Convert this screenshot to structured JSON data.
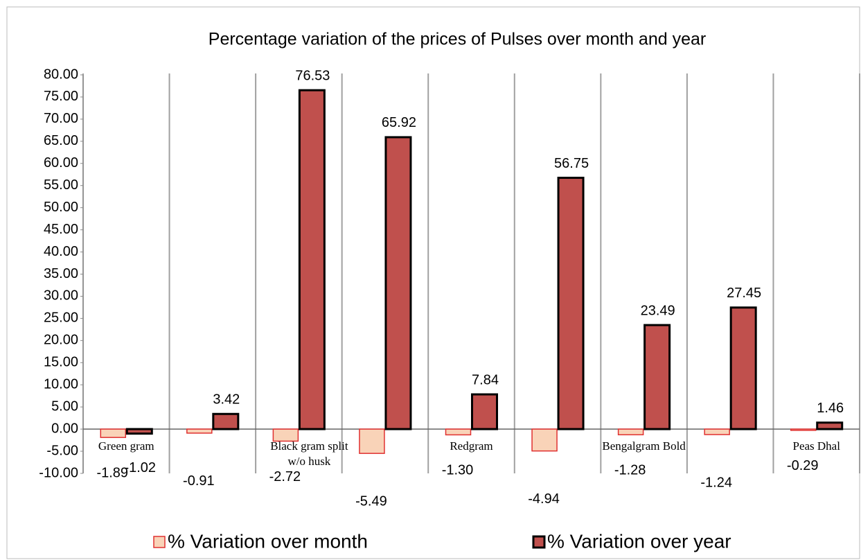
{
  "chart_data": {
    "type": "bar",
    "title": "Percentage variation of the prices of Pulses over month and year",
    "categories": [
      "Green gram",
      null,
      "Black gram split w/o husk",
      null,
      "Redgram",
      null,
      "Bengalgram Bold",
      null,
      "Peas Dhal"
    ],
    "series": [
      {
        "name": "% Variation over month",
        "color": "#f9d3b8",
        "border": "#e03030",
        "values": [
          -1.89,
          -0.91,
          -2.72,
          -5.49,
          -1.3,
          -4.94,
          -1.28,
          -1.24,
          -0.29
        ],
        "value_labels": [
          "-1.89",
          "-0.91",
          "-2.72",
          "-5.49",
          "-1.30",
          "-4.94",
          "-1.28",
          "-1.24",
          "-0.29"
        ]
      },
      {
        "name": "% Variation over year",
        "color": "#c0504d",
        "border": "#000000",
        "values": [
          -1.02,
          3.42,
          76.53,
          65.92,
          7.84,
          56.75,
          23.49,
          27.45,
          1.46
        ],
        "value_labels": [
          "-1.02",
          "3.42",
          "76.53",
          "65.92",
          "7.84",
          "56.75",
          "23.49",
          "27.45",
          "1.46"
        ]
      }
    ],
    "ylim": [
      -10,
      80
    ],
    "yticks": [
      {
        "value": -10,
        "label": "-10.00"
      },
      {
        "value": -5,
        "label": "-5.00"
      },
      {
        "value": 0,
        "label": "0.00"
      },
      {
        "value": 5,
        "label": "5.00"
      },
      {
        "value": 10,
        "label": "10.00"
      },
      {
        "value": 15,
        "label": "15.00"
      },
      {
        "value": 20,
        "label": "20.00"
      },
      {
        "value": 25,
        "label": "25.00"
      },
      {
        "value": 30,
        "label": "30.00"
      },
      {
        "value": 35,
        "label": "35.00"
      },
      {
        "value": 40,
        "label": "40.00"
      },
      {
        "value": 45,
        "label": "45.00"
      },
      {
        "value": 50,
        "label": "50.00"
      },
      {
        "value": 55,
        "label": "55.00"
      },
      {
        "value": 60,
        "label": "60.00"
      },
      {
        "value": 65,
        "label": "65.00"
      },
      {
        "value": 70,
        "label": "70.00"
      },
      {
        "value": 75,
        "label": "75.00"
      },
      {
        "value": 80,
        "label": "80.00"
      }
    ],
    "legend": "bottom"
  }
}
